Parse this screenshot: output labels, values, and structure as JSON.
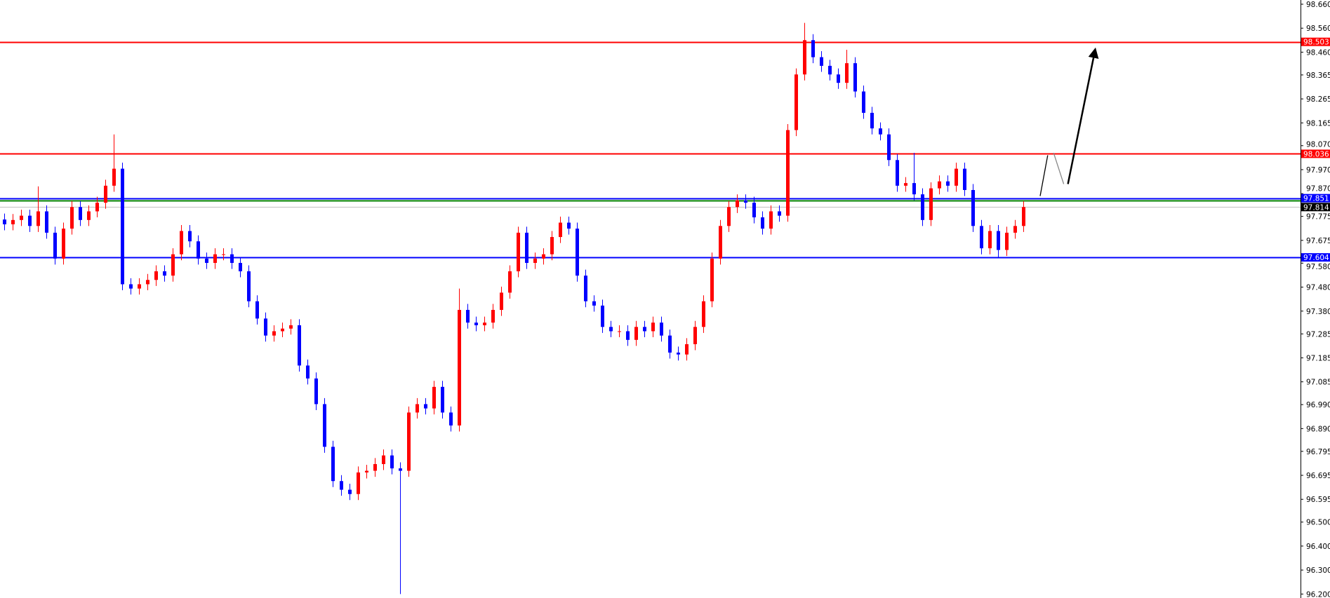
{
  "chart_data": {
    "type": "candlestick",
    "title": "",
    "ylim": [
      96.19,
      98.68
    ],
    "grid": false,
    "up_color": "#ff0000",
    "down_color": "#0000ff",
    "y_ticks": [
      "98.660",
      "98.560",
      "98.460",
      "98.365",
      "98.265",
      "98.165",
      "98.070",
      "97.970",
      "97.870",
      "97.775",
      "97.675",
      "97.580",
      "97.480",
      "97.380",
      "97.285",
      "97.185",
      "97.085",
      "96.990",
      "96.890",
      "96.795",
      "96.695",
      "96.595",
      "96.500",
      "96.400",
      "96.300",
      "96.200"
    ],
    "close": [
      97.742,
      97.76,
      97.778,
      97.735,
      97.796,
      97.707,
      97.599,
      97.724,
      97.814,
      97.76,
      97.796,
      97.832,
      97.903,
      97.974,
      97.492,
      97.474,
      97.492,
      97.51,
      97.546,
      97.528,
      97.617,
      97.714,
      97.671,
      97.599,
      97.581,
      97.617,
      97.617,
      97.581,
      97.546,
      97.421,
      97.349,
      97.278,
      97.296,
      97.307,
      97.321,
      97.153,
      97.099,
      96.992,
      96.814,
      96.671,
      96.635,
      96.617,
      96.707,
      96.714,
      96.742,
      96.778,
      96.724,
      96.714,
      96.957,
      96.992,
      96.974,
      97.064,
      96.957,
      96.903,
      97.385,
      97.332,
      97.321,
      97.332,
      97.385,
      97.457,
      97.546,
      97.707,
      97.581,
      97.599,
      97.617,
      97.689,
      97.749,
      97.724,
      97.528,
      97.421,
      97.403,
      97.314,
      97.296,
      97.296,
      97.26,
      97.314,
      97.296,
      97.332,
      97.278,
      97.207,
      97.199,
      97.242,
      97.314,
      97.421,
      97.599,
      97.735,
      97.814,
      97.842,
      97.832,
      97.771,
      97.724,
      97.796,
      97.778,
      98.135,
      98.367,
      98.51,
      98.439,
      98.403,
      98.367,
      98.332,
      98.414,
      98.296,
      98.207,
      98.142,
      98.117,
      98.01,
      97.903,
      97.914,
      97.867,
      97.76,
      97.892,
      97.921,
      97.903,
      97.974,
      97.885,
      97.735,
      97.642,
      97.714,
      97.635,
      97.707,
      97.735,
      97.814
    ],
    "wick_extremes": [
      {
        "index": 4,
        "high": 97.9
      },
      {
        "index": 13,
        "high": 98.117
      },
      {
        "index": 47,
        "low": 96.2
      },
      {
        "index": 54,
        "high": 97.474
      },
      {
        "index": 95,
        "high": 98.582
      },
      {
        "index": 100,
        "high": 98.47
      },
      {
        "index": 108,
        "high": 98.04
      },
      {
        "index": 118,
        "low": 97.6
      }
    ],
    "levels": [
      {
        "price": 98.503,
        "label": "98.503",
        "color": "#ff0000",
        "label_bg": "#ff0000"
      },
      {
        "price": 98.036,
        "label": "98.036",
        "color": "#ff0000",
        "label_bg": "#ff0000"
      },
      {
        "price": 97.851,
        "label": "97.851",
        "color": "#0000ff",
        "label_bg": "#0000ff"
      },
      {
        "price": 97.84,
        "label": "",
        "color": "#008000",
        "label_bg": ""
      },
      {
        "price": 97.814,
        "label": "97.814",
        "color": "#c0c0c0",
        "label_bg": "#000000"
      },
      {
        "price": 97.604,
        "label": "97.604",
        "color": "#0000ff",
        "label_bg": "#0000ff"
      }
    ],
    "annotations": [
      {
        "type": "line",
        "from": [
          123.0,
          97.86
        ],
        "to": [
          123.9,
          98.03
        ],
        "color": "#000000"
      },
      {
        "type": "line",
        "from": [
          124.6,
          98.04
        ],
        "to": [
          125.8,
          97.91
        ],
        "color": "#888888"
      },
      {
        "type": "arrow",
        "from": [
          126.3,
          97.91
        ],
        "to": [
          129.5,
          98.465
        ],
        "color": "#000000"
      }
    ]
  }
}
